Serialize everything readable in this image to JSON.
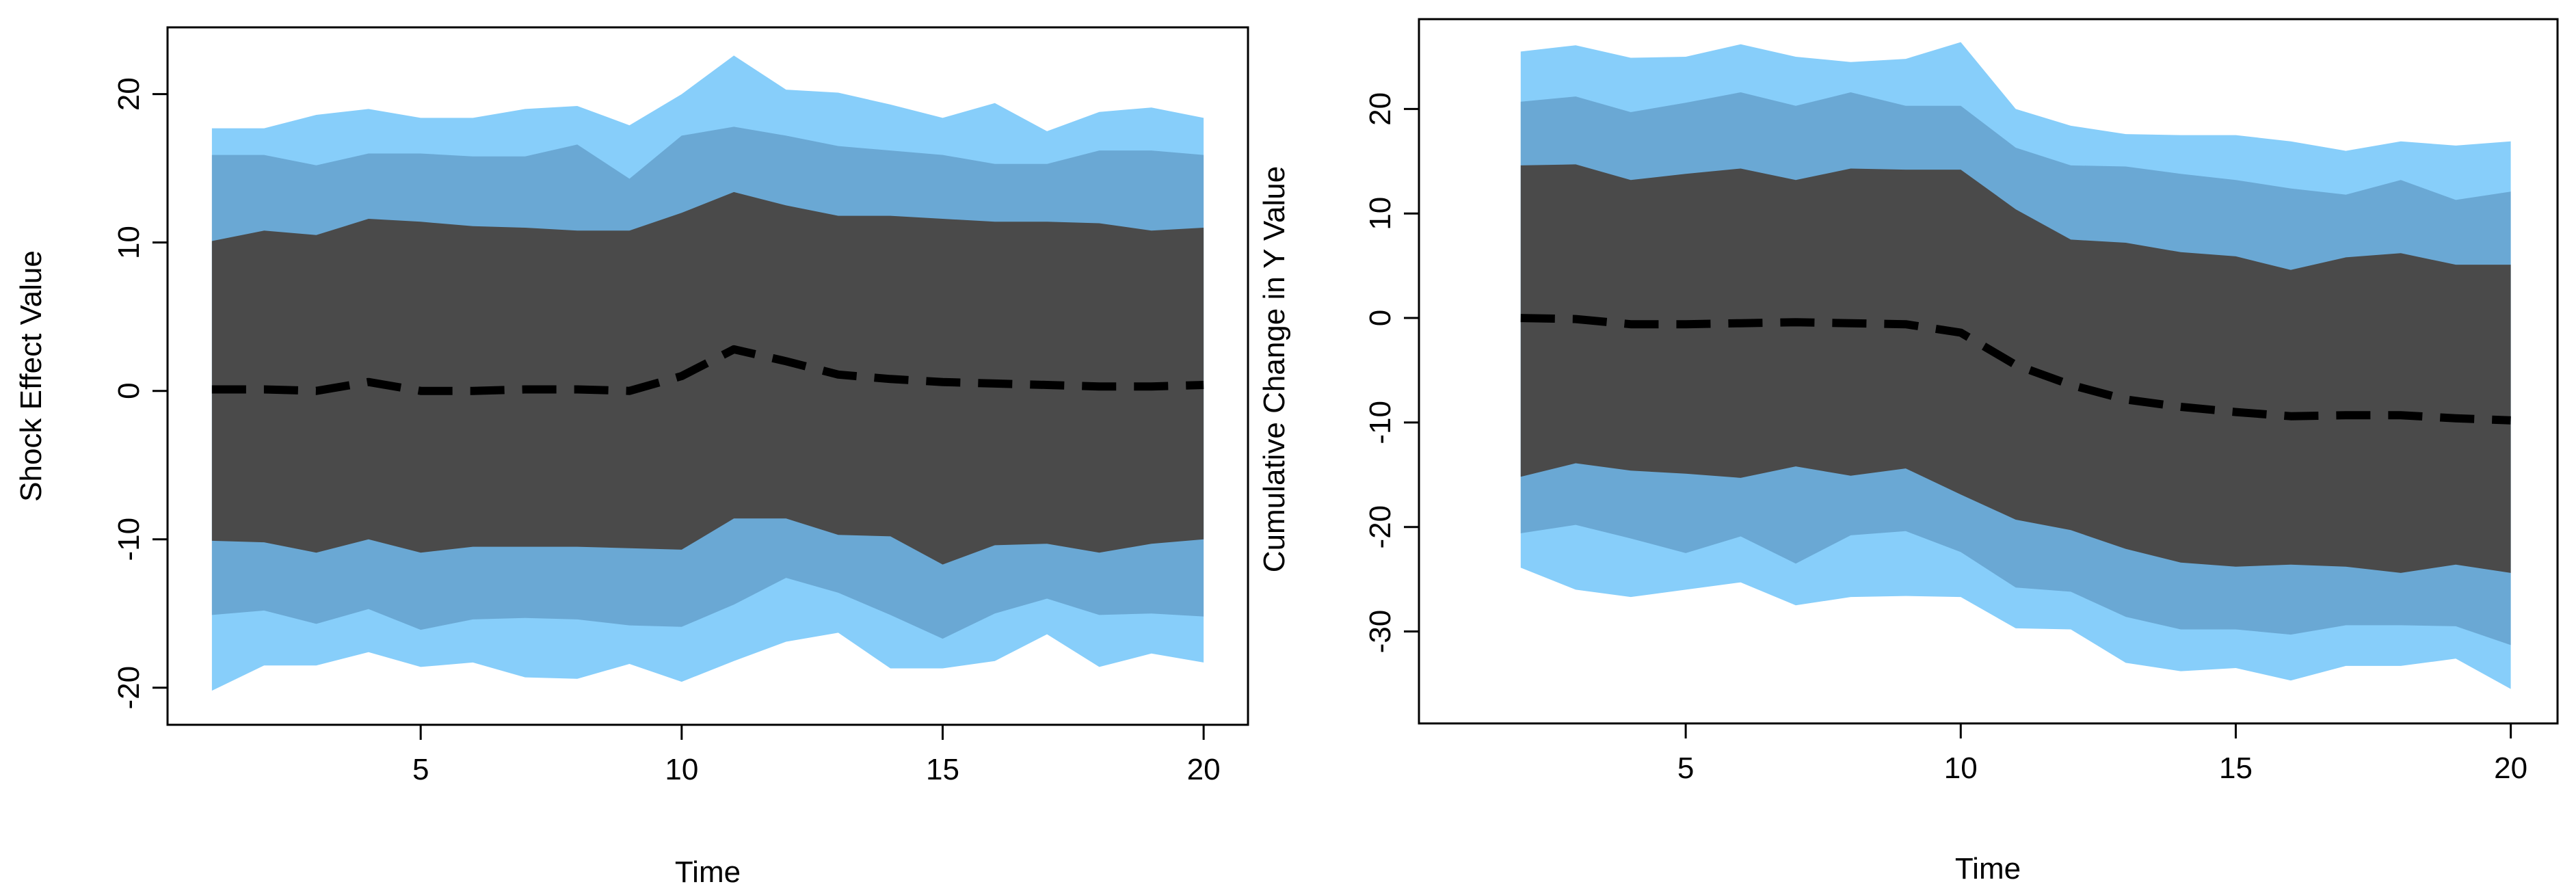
{
  "chart_data": [
    {
      "type": "area",
      "title": "",
      "xlabel": "Time",
      "ylabel": "Shock Effect Value",
      "xlim": [
        0.15,
        20.85
      ],
      "ylim": [
        -22.5,
        24.5
      ],
      "x_ticks": [
        5,
        10,
        15,
        20
      ],
      "y_ticks": [
        -20,
        -10,
        0,
        10,
        20
      ],
      "x": [
        1,
        2,
        3,
        4,
        5,
        6,
        7,
        8,
        9,
        10,
        11,
        12,
        13,
        14,
        15,
        16,
        17,
        18,
        19,
        20
      ],
      "bands": [
        {
          "name": "outer interval",
          "color": "#87cefa",
          "upper": [
            17.7,
            17.7,
            18.6,
            19.0,
            18.4,
            18.4,
            19.0,
            19.2,
            17.9,
            20.0,
            22.6,
            20.3,
            20.1,
            19.3,
            18.4,
            19.4,
            17.5,
            18.8,
            19.1,
            18.4
          ],
          "lower": [
            -20.2,
            -18.5,
            -18.5,
            -17.6,
            -18.6,
            -18.3,
            -19.3,
            -19.4,
            -18.4,
            -19.6,
            -18.2,
            -16.9,
            -16.3,
            -18.7,
            -18.7,
            -18.2,
            -16.4,
            -18.6,
            -17.7,
            -18.3
          ]
        },
        {
          "name": "middle interval",
          "color": "#6aa8d4",
          "upper": [
            15.9,
            15.9,
            15.2,
            16.0,
            16.0,
            15.8,
            15.8,
            16.6,
            14.3,
            17.2,
            17.8,
            17.2,
            16.5,
            16.2,
            15.9,
            15.3,
            15.3,
            16.2,
            16.2,
            15.9
          ],
          "lower": [
            -15.1,
            -14.8,
            -15.7,
            -14.7,
            -16.1,
            -15.4,
            -15.3,
            -15.4,
            -15.8,
            -15.9,
            -14.4,
            -12.6,
            -13.6,
            -15.1,
            -16.7,
            -15.0,
            -14.0,
            -15.1,
            -15.0,
            -15.2
          ]
        },
        {
          "name": "inner interval",
          "color": "#4a4a4a",
          "upper": [
            10.1,
            10.8,
            10.5,
            11.6,
            11.4,
            11.1,
            11.0,
            10.8,
            10.8,
            12.0,
            13.4,
            12.5,
            11.8,
            11.8,
            11.6,
            11.4,
            11.4,
            11.3,
            10.8,
            11.0
          ],
          "lower": [
            -10.1,
            -10.2,
            -10.9,
            -10.0,
            -10.9,
            -10.5,
            -10.5,
            -10.5,
            -10.6,
            -10.7,
            -8.6,
            -8.6,
            -9.7,
            -9.8,
            -11.7,
            -10.4,
            -10.3,
            -10.9,
            -10.3,
            -10.0
          ]
        }
      ],
      "series": [
        {
          "name": "median",
          "style": "dashed",
          "color": "#000000",
          "values": [
            0.1,
            0.1,
            0.0,
            0.6,
            0.0,
            0.0,
            0.1,
            0.1,
            0.0,
            1.0,
            2.8,
            2.0,
            1.1,
            0.8,
            0.6,
            0.5,
            0.4,
            0.3,
            0.3,
            0.4
          ]
        }
      ]
    },
    {
      "type": "area",
      "title": "",
      "xlabel": "Time",
      "ylabel": "Cumulative Change in Y Value",
      "xlim": [
        0.15,
        20.85
      ],
      "ylim": [
        -38.8,
        28.6
      ],
      "x_ticks": [
        5,
        10,
        15,
        20
      ],
      "y_ticks": [
        -30,
        -20,
        -10,
        0,
        10,
        20
      ],
      "x": [
        2,
        3,
        4,
        5,
        6,
        7,
        8,
        9,
        10,
        11,
        12,
        13,
        14,
        15,
        16,
        17,
        18,
        19,
        20
      ],
      "bands": [
        {
          "name": "outer interval",
          "color": "#87cefa",
          "upper": [
            25.5,
            26.1,
            24.9,
            25.0,
            26.2,
            25.0,
            24.5,
            24.8,
            26.4,
            20.0,
            18.4,
            17.6,
            17.5,
            17.5,
            16.9,
            16.0,
            16.9,
            16.5,
            16.9
          ],
          "lower": [
            -23.9,
            -26.0,
            -26.7,
            -26.0,
            -25.3,
            -27.5,
            -26.7,
            -26.6,
            -26.7,
            -29.7,
            -29.8,
            -33.0,
            -33.8,
            -33.5,
            -34.7,
            -33.3,
            -33.3,
            -32.6,
            -35.5
          ]
        },
        {
          "name": "middle interval",
          "color": "#6aa8d4",
          "upper": [
            20.7,
            21.2,
            19.7,
            20.6,
            21.6,
            20.3,
            21.6,
            20.3,
            20.3,
            16.3,
            14.6,
            14.5,
            13.8,
            13.2,
            12.4,
            11.8,
            13.2,
            11.3,
            12.1
          ],
          "lower": [
            -20.6,
            -19.8,
            -21.1,
            -22.5,
            -20.9,
            -23.5,
            -20.8,
            -20.4,
            -22.4,
            -25.8,
            -26.2,
            -28.6,
            -29.8,
            -29.8,
            -30.3,
            -29.4,
            -29.4,
            -29.5,
            -31.3
          ]
        },
        {
          "name": "inner interval",
          "color": "#4a4a4a",
          "upper": [
            14.6,
            14.7,
            13.2,
            13.8,
            14.3,
            13.2,
            14.3,
            14.2,
            14.2,
            10.4,
            7.5,
            7.2,
            6.3,
            5.9,
            4.6,
            5.8,
            6.2,
            5.1,
            5.1
          ],
          "lower": [
            -15.2,
            -13.9,
            -14.6,
            -14.9,
            -15.3,
            -14.2,
            -15.1,
            -14.4,
            -16.9,
            -19.3,
            -20.3,
            -22.1,
            -23.4,
            -23.8,
            -23.6,
            -23.8,
            -24.4,
            -23.6,
            -24.4
          ]
        }
      ],
      "series": [
        {
          "name": "median",
          "style": "dashed",
          "color": "#000000",
          "values": [
            0.0,
            -0.1,
            -0.6,
            -0.6,
            -0.5,
            -0.4,
            -0.5,
            -0.6,
            -1.4,
            -4.5,
            -6.4,
            -7.8,
            -8.5,
            -9.0,
            -9.4,
            -9.3,
            -9.3,
            -9.6,
            -9.8
          ]
        }
      ]
    }
  ]
}
